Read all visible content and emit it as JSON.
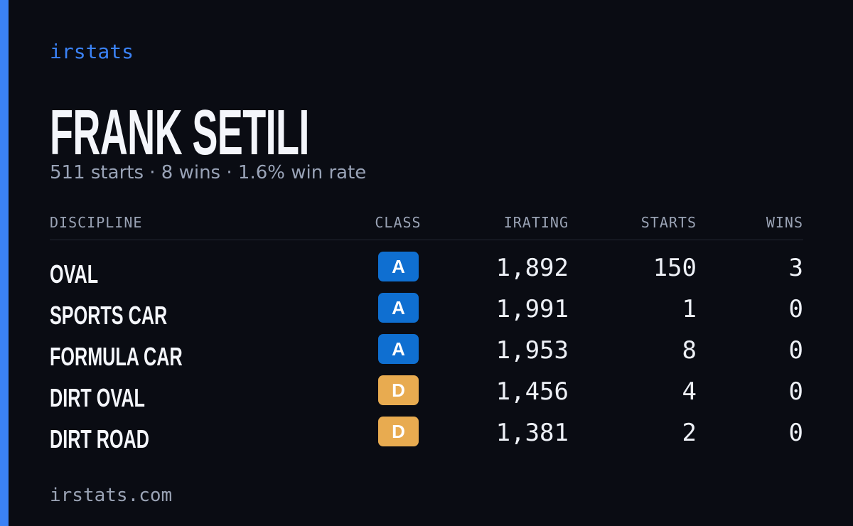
{
  "brand": "irstats",
  "header": {
    "title": "FRANK SETILI",
    "subtitle": "511 starts · 8 wins · 1.6% win rate"
  },
  "table": {
    "columns": [
      "DISCIPLINE",
      "CLASS",
      "IRATING",
      "STARTS",
      "WINS"
    ],
    "rows": [
      [
        "OVAL",
        "A",
        "1,892",
        "150",
        "3"
      ],
      [
        "SPORTS CAR",
        "A",
        "1,991",
        "1",
        "0"
      ],
      [
        "FORMULA CAR",
        "A",
        "1,953",
        "8",
        "0"
      ],
      [
        "DIRT OVAL",
        "D",
        "1,456",
        "4",
        "0"
      ],
      [
        "DIRT ROAD",
        "D",
        "1,381",
        "2",
        "0"
      ]
    ],
    "badge_colors": [
      "#0f6fd1",
      "#0f6fd1",
      "#0f6fd1",
      "#e8ab50",
      "#e8ab50"
    ]
  },
  "footer": "irstats.com"
}
